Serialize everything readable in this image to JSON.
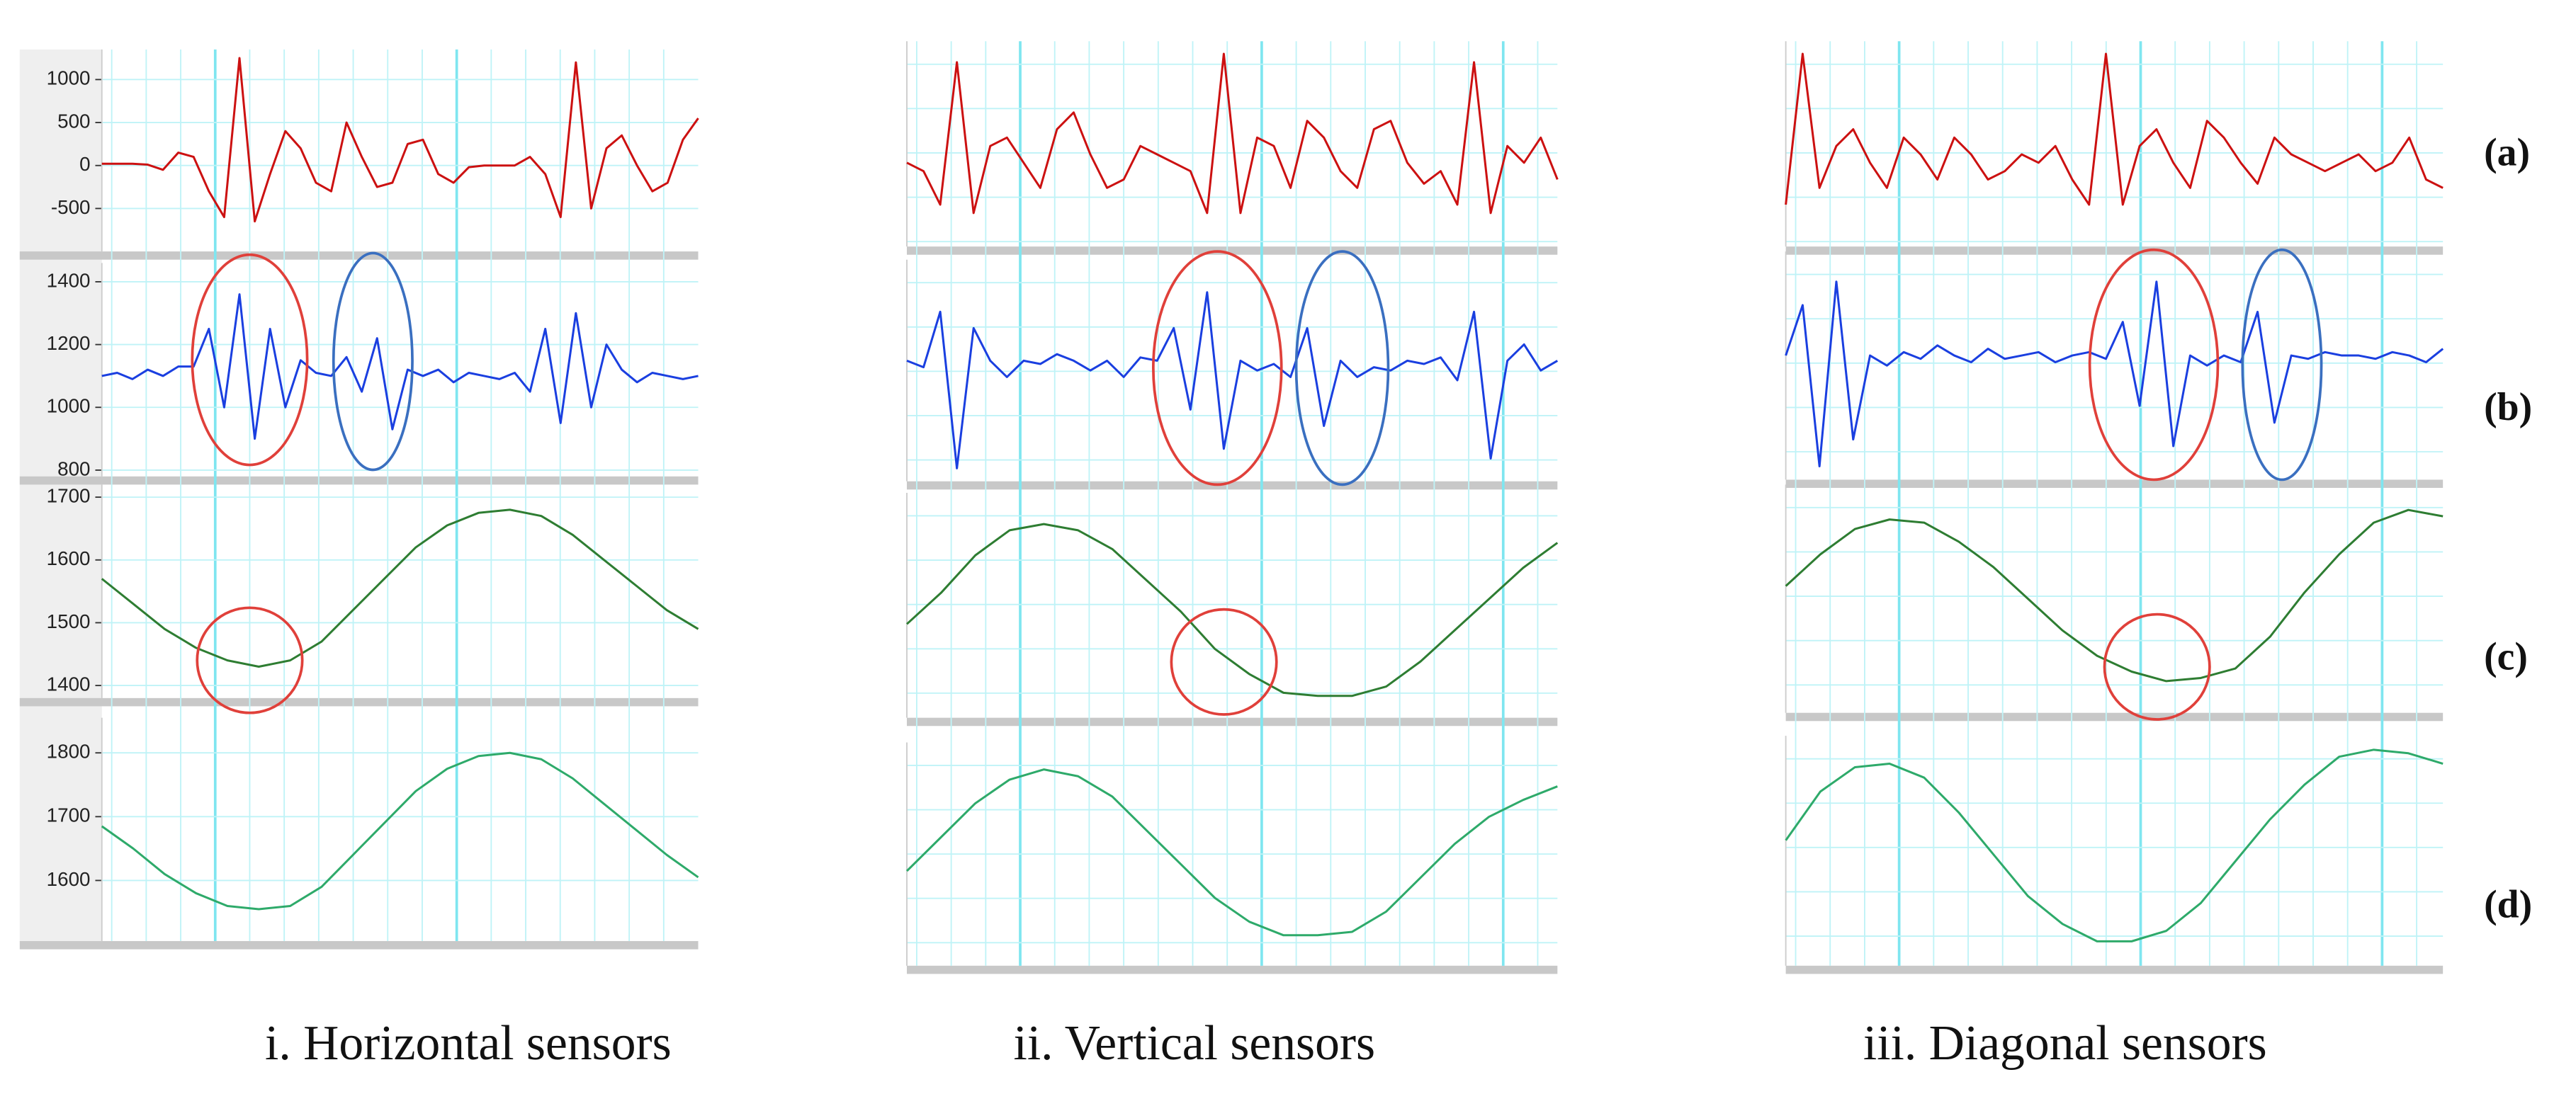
{
  "row_labels": [
    "(a)",
    "(b)",
    "(c)",
    "(d)"
  ],
  "chart_data": [
    {
      "type": "line",
      "caption": "i. Horizontal sensors",
      "rows": [
        {
          "color": "#cc1111",
          "ylim": [
            -1000,
            1350
          ],
          "yticks": [
            -500,
            0,
            500,
            1000
          ],
          "values": [
            20,
            20,
            20,
            10,
            -50,
            150,
            100,
            -300,
            -600,
            1250,
            -650,
            -100,
            400,
            200,
            -200,
            -300,
            500,
            100,
            -250,
            -200,
            250,
            300,
            -100,
            -200,
            -20,
            0,
            0,
            0,
            100,
            -100,
            -600,
            1200,
            -500,
            200,
            350,
            0,
            -300,
            -200,
            300,
            550
          ]
        },
        {
          "color": "#1a3fe0",
          "ylim": [
            780,
            1460
          ],
          "yticks": [
            800,
            1000,
            1200,
            1400
          ],
          "values": [
            1100,
            1110,
            1090,
            1120,
            1100,
            1130,
            1130,
            1250,
            1000,
            1360,
            900,
            1250,
            1000,
            1150,
            1110,
            1100,
            1160,
            1050,
            1220,
            930,
            1120,
            1100,
            1120,
            1080,
            1110,
            1100,
            1090,
            1110,
            1050,
            1250,
            950,
            1300,
            1000,
            1200,
            1120,
            1080,
            1110,
            1100,
            1090,
            1100
          ]
        },
        {
          "color": "#2e7d32",
          "ylim": [
            1380,
            1720
          ],
          "yticks": [
            1400,
            1500,
            1600,
            1700
          ],
          "values": [
            1570,
            1530,
            1490,
            1460,
            1440,
            1430,
            1440,
            1470,
            1520,
            1570,
            1620,
            1655,
            1675,
            1680,
            1670,
            1640,
            1600,
            1560,
            1520,
            1490
          ]
        },
        {
          "color": "#2eaa6a",
          "ylim": [
            1505,
            1855
          ],
          "yticks": [
            1600,
            1700,
            1800
          ],
          "values": [
            1685,
            1650,
            1610,
            1580,
            1560,
            1555,
            1560,
            1590,
            1640,
            1690,
            1740,
            1775,
            1795,
            1800,
            1790,
            1760,
            1720,
            1680,
            1640,
            1605
          ]
        }
      ]
    },
    {
      "type": "line",
      "caption": "ii. Vertical sensors",
      "rows": [
        {
          "color": "#cc1111",
          "ylim": [
            -1000,
            1450
          ],
          "values": [
            0,
            -100,
            -500,
            1200,
            -600,
            200,
            300,
            0,
            -300,
            400,
            600,
            100,
            -300,
            -200,
            200,
            100,
            0,
            -100,
            -600,
            1300,
            -600,
            300,
            200,
            -300,
            500,
            300,
            -100,
            -300,
            400,
            500,
            0,
            -250,
            -100,
            -500,
            1200,
            -600,
            200,
            0,
            300,
            -200
          ]
        },
        {
          "color": "#1a3fe0",
          "ylim": [
            780,
            1460
          ],
          "values": [
            1150,
            1130,
            1300,
            820,
            1250,
            1150,
            1100,
            1150,
            1140,
            1170,
            1150,
            1120,
            1150,
            1100,
            1160,
            1150,
            1250,
            1000,
            1360,
            880,
            1150,
            1120,
            1140,
            1100,
            1250,
            950,
            1150,
            1100,
            1130,
            1120,
            1150,
            1140,
            1160,
            1090,
            1300,
            850,
            1150,
            1200,
            1120,
            1150
          ]
        },
        {
          "color": "#2e7d32",
          "ylim": [
            1360,
            1720
          ],
          "values": [
            1510,
            1560,
            1620,
            1660,
            1670,
            1660,
            1630,
            1580,
            1530,
            1470,
            1430,
            1400,
            1395,
            1395,
            1410,
            1450,
            1500,
            1550,
            1600,
            1640
          ]
        },
        {
          "color": "#2eaa6a",
          "ylim": [
            1470,
            1800
          ],
          "values": [
            1610,
            1660,
            1710,
            1745,
            1760,
            1750,
            1720,
            1670,
            1620,
            1570,
            1535,
            1515,
            1515,
            1520,
            1550,
            1600,
            1650,
            1690,
            1715,
            1735
          ]
        }
      ]
    },
    {
      "type": "line",
      "caption": "iii. Diagonal sensors",
      "rows": [
        {
          "color": "#cc1111",
          "ylim": [
            -1000,
            1450
          ],
          "values": [
            -500,
            1300,
            -300,
            200,
            400,
            0,
            -300,
            300,
            100,
            -200,
            300,
            100,
            -200,
            -100,
            100,
            0,
            200,
            -200,
            -500,
            1300,
            -500,
            200,
            400,
            0,
            -300,
            500,
            300,
            0,
            -250,
            300,
            100,
            0,
            -100,
            0,
            100,
            -100,
            0,
            300,
            -200,
            -300
          ]
        },
        {
          "color": "#1a3fe0",
          "ylim": [
            780,
            1460
          ],
          "values": [
            1150,
            1300,
            820,
            1370,
            900,
            1150,
            1120,
            1160,
            1140,
            1180,
            1150,
            1130,
            1170,
            1140,
            1150,
            1160,
            1130,
            1150,
            1160,
            1140,
            1250,
            1000,
            1370,
            880,
            1150,
            1120,
            1150,
            1130,
            1280,
            950,
            1150,
            1140,
            1160,
            1150,
            1150,
            1140,
            1160,
            1150,
            1130,
            1170
          ]
        },
        {
          "color": "#2e7d32",
          "ylim": [
            1360,
            1720
          ],
          "values": [
            1560,
            1610,
            1650,
            1665,
            1660,
            1630,
            1590,
            1540,
            1490,
            1450,
            1425,
            1410,
            1415,
            1430,
            1480,
            1550,
            1610,
            1660,
            1680,
            1670
          ]
        },
        {
          "color": "#2eaa6a",
          "ylim": [
            1470,
            1800
          ],
          "values": [
            1650,
            1720,
            1755,
            1760,
            1740,
            1690,
            1630,
            1570,
            1530,
            1505,
            1505,
            1520,
            1560,
            1620,
            1680,
            1730,
            1770,
            1780,
            1775,
            1760
          ]
        }
      ]
    }
  ]
}
